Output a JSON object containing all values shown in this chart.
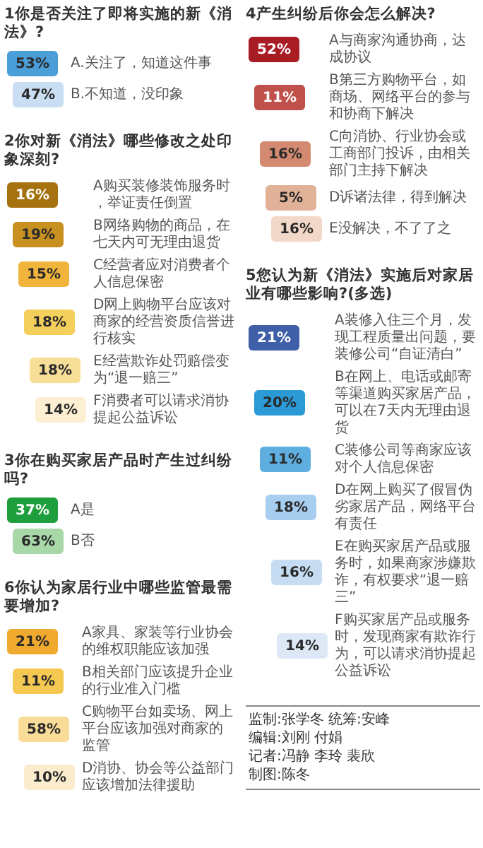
{
  "chart_data": [
    {
      "type": "other",
      "title": "1你是否关注了即将实施的新《消法》?",
      "categories": [
        "A.关注了，知道这件事",
        "B.不知道，没印象"
      ],
      "values": [
        53,
        47
      ],
      "value_labels": [
        "53%",
        "47%"
      ],
      "colors": [
        "#4a9fd8",
        "#c9def2"
      ]
    },
    {
      "type": "other",
      "title": "2你对新《消法》哪些修改之处印象深刻?",
      "categories": [
        "A购买装修装饰服务时，举证责任倒置",
        "B网络购物的商品，在七天内可无理由退货",
        "C经营者应对消费者个人信息保密",
        "D网上购物平台应该对商家的经营资质信誉进行核实",
        "E经营欺诈处罚赔偿变为“退一赔三”",
        "F消费者可以请求消协提起公益诉讼"
      ],
      "values": [
        16,
        19,
        15,
        18,
        18,
        14
      ],
      "value_labels": [
        "16%",
        "19%",
        "15%",
        "18%",
        "18%",
        "14%"
      ],
      "colors": [
        "#a5720f",
        "#c8901f",
        "#f0b43c",
        "#f5cf5c",
        "#f8df98",
        "#fcefd2"
      ]
    },
    {
      "type": "other",
      "title": "3你在购买家居产品时产生过纠纷吗?",
      "categories": [
        "A是",
        "B否"
      ],
      "values": [
        37,
        63
      ],
      "value_labels": [
        "37%",
        "63%"
      ],
      "colors": [
        "#1f9e3d",
        "#a8d8a8"
      ]
    },
    {
      "type": "other",
      "title": "4产生纠纷后你会怎么解决?",
      "categories": [
        "A与商家沟通协商，达成协议",
        "B第三方购物平台，如商场、网络平台的参与和协商下解决",
        "C向消协、行业协会或工商部门投诉，由相关部门主持下解决",
        "D诉诸法律，得到解决",
        "E没解决，不了了之"
      ],
      "values": [
        52,
        11,
        16,
        5,
        16
      ],
      "value_labels": [
        "52%",
        "11%",
        "16%",
        "5%",
        "16%"
      ],
      "colors": [
        "#a81c24",
        "#c0504a",
        "#d48a70",
        "#e2b298",
        "#f2d8c8"
      ]
    },
    {
      "type": "other",
      "title": "5您认为新《消法》实施后对家居业有哪些影响?(多选)",
      "categories": [
        "A装修入住三个月，发现工程质量出问题，要装修公司“自证清白”",
        "B在网上、电话或邮寄等渠道购买家居产品，可以在7天内无理由退货",
        "C装修公司等商家应该对个人信息保密",
        "D在网上购买了假冒伪劣家居产品，网络平台有责任",
        "E在购买家居产品或服务时，如果商家涉嫌欺诈，有权要求“退一赔三”",
        "F购买家居产品或服务时，发现商家有欺诈行为，可以请求消协提起公益诉讼"
      ],
      "values": [
        21,
        20,
        11,
        18,
        16,
        14
      ],
      "value_labels": [
        "21%",
        "20%",
        "11%",
        "18%",
        "16%",
        "14%"
      ],
      "colors": [
        "#3f5fa8",
        "#2b9ad6",
        "#5eaee0",
        "#a7cdef",
        "#c6dcf2",
        "#dde8f6"
      ]
    },
    {
      "type": "other",
      "title": "6你认为家居行业中哪些监管最需要增加?",
      "categories": [
        "A家具、家装等行业协会的维权职能应该加强",
        "B相关部门应该提升企业的行业准入门槛",
        "C购物平台如卖场、网上平台应该加强对商家的监管",
        "D消协、协会等公益部门应该增加法律援助"
      ],
      "values": [
        21,
        11,
        58,
        10
      ],
      "value_labels": [
        "21%",
        "11%",
        "58%",
        "10%"
      ],
      "colors": [
        "#f0aa30",
        "#f5c852",
        "#f9dc98",
        "#fbeccd"
      ]
    },
    {
      "type": "other",
      "annotations": [
        "监制:张学冬 统筹:安峰",
        "编辑:刘刚 付娟",
        "记者:冯静 李玲 裴欣",
        "制图:陈冬"
      ]
    }
  ]
}
